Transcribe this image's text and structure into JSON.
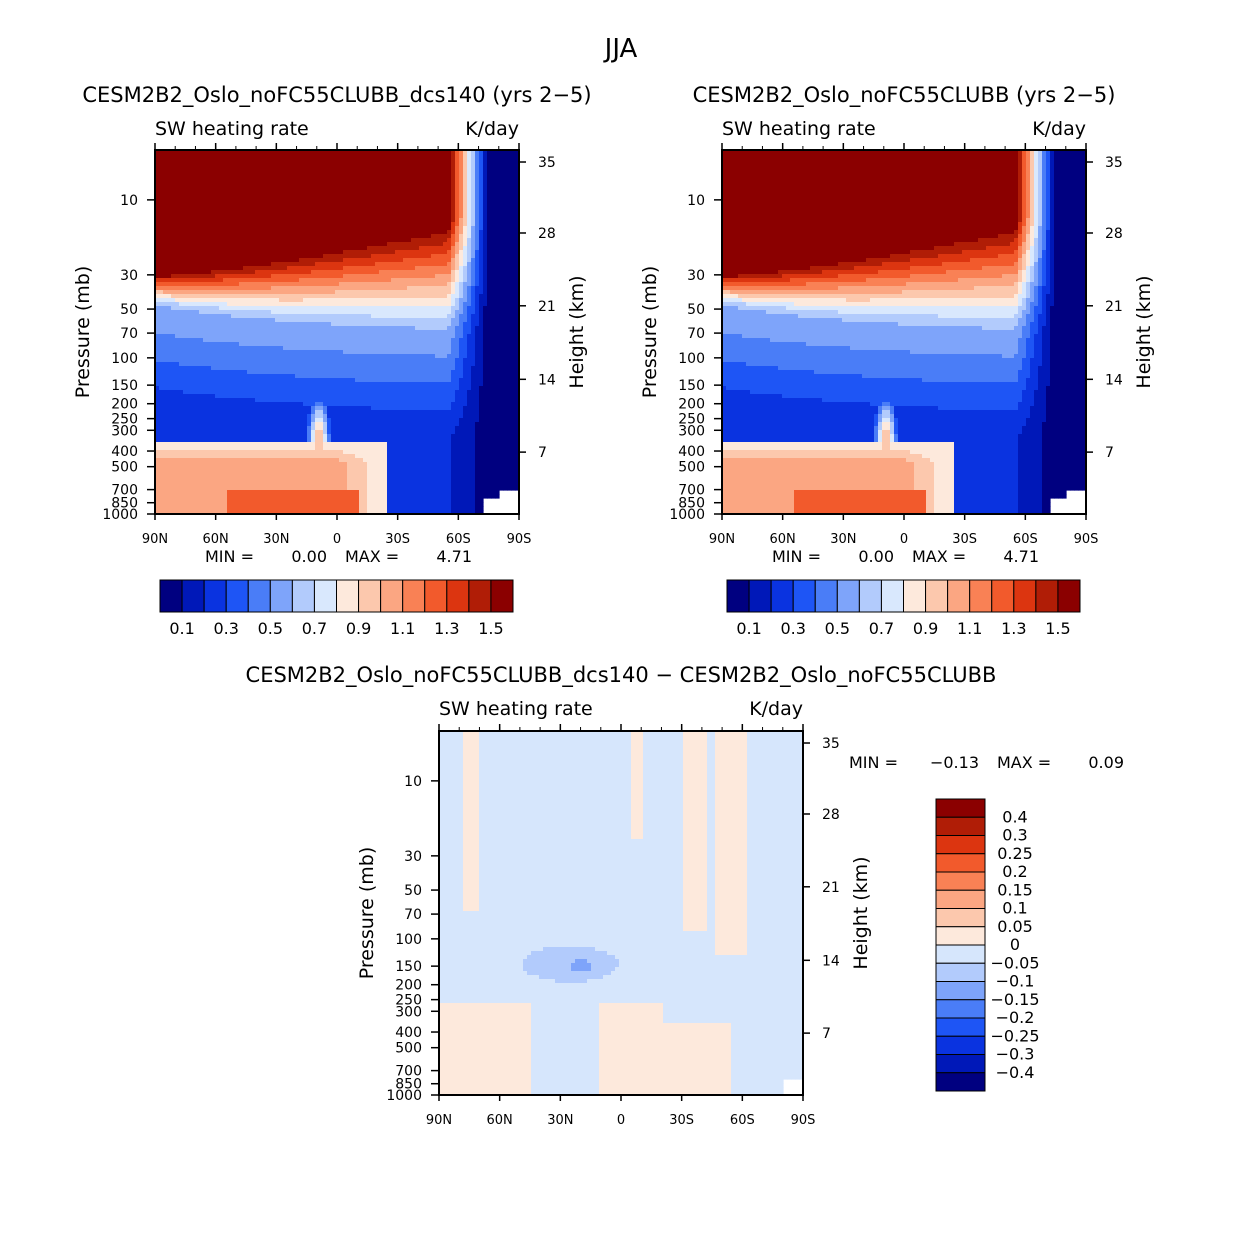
{
  "figure_title": "JJA",
  "chart_data": [
    {
      "type": "heatmap",
      "title": "CESM2B2_Oslo_noFC55CLUBB_dcs140 (yrs 2−5)",
      "left_label": "SW heating rate",
      "right_label": "K/day",
      "xlabel": "",
      "ylabel": "Pressure (mb)",
      "ylabel_right": "Height (km)",
      "x_ticks": [
        "90N",
        "60N",
        "30N",
        "0",
        "30S",
        "60S",
        "90S"
      ],
      "y_ticks": [
        "10",
        "30",
        "50",
        "70",
        "100",
        "150",
        "200",
        "250",
        "300",
        "400",
        "500",
        "700",
        "850",
        "1000"
      ],
      "y_right_ticks": [
        "35",
        "28",
        "21",
        "14",
        "7"
      ],
      "min_text": "MIN =",
      "min_value": "0.00",
      "max_text": "MAX =",
      "max_value": "4.71",
      "colorbar_labels": [
        "0.1",
        "0.3",
        "0.5",
        "0.7",
        "0.9",
        "1.1",
        "1.3",
        "1.5"
      ]
    },
    {
      "type": "heatmap",
      "title": "CESM2B2_Oslo_noFC55CLUBB (yrs 2−5)",
      "left_label": "SW heating rate",
      "right_label": "K/day",
      "xlabel": "",
      "ylabel": "Pressure (mb)",
      "ylabel_right": "Height (km)",
      "x_ticks": [
        "90N",
        "60N",
        "30N",
        "0",
        "30S",
        "60S",
        "90S"
      ],
      "y_ticks": [
        "10",
        "30",
        "50",
        "70",
        "100",
        "150",
        "200",
        "250",
        "300",
        "400",
        "500",
        "700",
        "850",
        "1000"
      ],
      "y_right_ticks": [
        "35",
        "28",
        "21",
        "14",
        "7"
      ],
      "min_text": "MIN =",
      "min_value": "0.00",
      "max_text": "MAX =",
      "max_value": "4.71",
      "colorbar_labels": [
        "0.1",
        "0.3",
        "0.5",
        "0.7",
        "0.9",
        "1.1",
        "1.3",
        "1.5"
      ]
    },
    {
      "type": "heatmap",
      "title": "CESM2B2_Oslo_noFC55CLUBB_dcs140 − CESM2B2_Oslo_noFC55CLUBB",
      "left_label": "SW heating rate",
      "right_label": "K/day",
      "xlabel": "",
      "ylabel": "Pressure (mb)",
      "ylabel_right": "Height (km)",
      "x_ticks": [
        "90N",
        "60N",
        "30N",
        "0",
        "30S",
        "60S",
        "90S"
      ],
      "y_ticks": [
        "10",
        "30",
        "50",
        "70",
        "100",
        "150",
        "200",
        "250",
        "300",
        "400",
        "500",
        "700",
        "850",
        "1000"
      ],
      "y_right_ticks": [
        "35",
        "28",
        "21",
        "14",
        "7"
      ],
      "min_text": "MIN =",
      "min_value": "−0.13",
      "max_text": "MAX =",
      "max_value": "0.09",
      "colorbar_labels": [
        "0.4",
        "0.3",
        "0.25",
        "0.2",
        "0.15",
        "0.1",
        "0.05",
        "0",
        "−0.05",
        "−0.1",
        "−0.15",
        "−0.2",
        "−0.25",
        "−0.3",
        "−0.4"
      ]
    }
  ],
  "colors": {
    "scale": [
      "#000080",
      "#0018b8",
      "#0a33e0",
      "#1e55f5",
      "#4a7df7",
      "#7ea4fa",
      "#b2cbfc",
      "#d9e8fd",
      "#fde9dc",
      "#fcc8ad",
      "#fba682",
      "#f98155",
      "#f25a2c",
      "#dc3510",
      "#b01d06",
      "#8b0000"
    ],
    "diff_scale": [
      "#000080",
      "#0018b8",
      "#0a33e0",
      "#1e55f5",
      "#4a7df7",
      "#7ea4fa",
      "#b2cbfc",
      "#d6e6fc",
      "#fde9dc",
      "#fcc8ad",
      "#fba682",
      "#f98155",
      "#f25a2c",
      "#dc3510",
      "#b01d06",
      "#8b0000"
    ]
  }
}
